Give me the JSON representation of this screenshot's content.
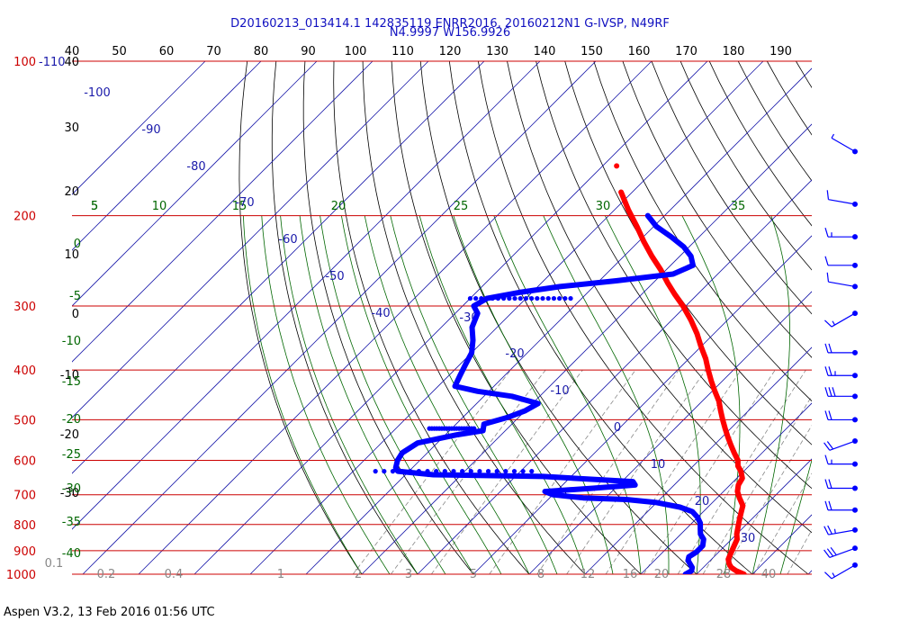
{
  "header": {
    "line1": "D20160213_013414.1 142835119 ENRR2016, 20160212N1 G-IVSP, N49RF",
    "line2": "N4.9997 W156.9926"
  },
  "footer": "Aspen V3.2, 13 Feb 2016  01:56 UTC",
  "colors": {
    "isobar": "#cc0000",
    "isotherm": "#1a1aaa",
    "dry_adiabat": "#000000",
    "moist_adiabat": "#006600",
    "mixing_ratio": "#888888",
    "temperature": "#ff0000",
    "dewpoint": "#0000ff",
    "wind_barb": "#0000ff"
  },
  "chart_data": {
    "type": "scatter",
    "subtype": "skew-t log-p sounding",
    "pressure_range_hPa": [
      100,
      1000
    ],
    "pressure_labels": [
      "100",
      "200",
      "300",
      "400",
      "500",
      "600",
      "700",
      "800",
      "900",
      "1000"
    ],
    "top_corner_label": "-110",
    "top_scale_labels": [
      "40",
      "50",
      "60",
      "70",
      "80",
      "90",
      "100",
      "110",
      "120",
      "130",
      "140",
      "150",
      "160",
      "170",
      "180",
      "190"
    ],
    "left_black_labels": [
      "40",
      "30",
      "20",
      "10",
      "0",
      "-10",
      "-20",
      "-30"
    ],
    "left_green_labels": [
      "5",
      "0",
      "-5",
      "-10",
      "-15",
      "-20",
      "-25",
      "-30",
      "-35",
      "-40"
    ],
    "top_green_labels": [
      "5",
      "10",
      "15",
      "20",
      "25",
      "30",
      "35"
    ],
    "isotherm_labels": [
      "-100",
      "-90",
      "-80",
      "-70",
      "-60",
      "-50",
      "-40",
      "-30",
      "-20",
      "-10",
      "0",
      "10",
      "20",
      "30"
    ],
    "bottom_labels": [
      "0.1",
      "0.2",
      "0.4",
      "1",
      "2",
      "3",
      "5",
      "8",
      "12",
      "16",
      "20",
      "28",
      "40"
    ],
    "temperature_profile": [
      {
        "p": 1000,
        "t": 28.5
      },
      {
        "p": 985,
        "t": 26.5
      },
      {
        "p": 970,
        "t": 25.0
      },
      {
        "p": 955,
        "t": 24.0
      },
      {
        "p": 935,
        "t": 23.0
      },
      {
        "p": 915,
        "t": 22.5
      },
      {
        "p": 895,
        "t": 22.0
      },
      {
        "p": 875,
        "t": 21.5
      },
      {
        "p": 855,
        "t": 21.0
      },
      {
        "p": 835,
        "t": 20.0
      },
      {
        "p": 810,
        "t": 19.0
      },
      {
        "p": 785,
        "t": 18.0
      },
      {
        "p": 760,
        "t": 17.0
      },
      {
        "p": 735,
        "t": 16.0
      },
      {
        "p": 710,
        "t": 14.0
      },
      {
        "p": 690,
        "t": 12.5
      },
      {
        "p": 670,
        "t": 11.5
      },
      {
        "p": 650,
        "t": 11.0
      },
      {
        "p": 630,
        "t": 9.5
      },
      {
        "p": 615,
        "t": 8.0
      },
      {
        "p": 600,
        "t": 7.0
      },
      {
        "p": 580,
        "t": 5.0
      },
      {
        "p": 560,
        "t": 3.0
      },
      {
        "p": 540,
        "t": 1.0
      },
      {
        "p": 520,
        "t": -1.0
      },
      {
        "p": 500,
        "t": -3.0
      },
      {
        "p": 480,
        "t": -5.0
      },
      {
        "p": 460,
        "t": -7.0
      },
      {
        "p": 440,
        "t": -9.5
      },
      {
        "p": 420,
        "t": -12.0
      },
      {
        "p": 400,
        "t": -14.5
      },
      {
        "p": 380,
        "t": -17.0
      },
      {
        "p": 360,
        "t": -20.0
      },
      {
        "p": 340,
        "t": -23.0
      },
      {
        "p": 320,
        "t": -26.5
      },
      {
        "p": 300,
        "t": -30.5
      },
      {
        "p": 285,
        "t": -34.0
      },
      {
        "p": 270,
        "t": -37.5
      },
      {
        "p": 255,
        "t": -41.0
      },
      {
        "p": 240,
        "t": -45.0
      },
      {
        "p": 225,
        "t": -49.0
      },
      {
        "p": 210,
        "t": -53.0
      },
      {
        "p": 195,
        "t": -57.5
      },
      {
        "p": 180,
        "t": -62.0
      }
    ],
    "temperature_isolated_point": {
      "p": 160,
      "t": -67.5
    },
    "dewpoint_profile": [
      {
        "p": 1000,
        "td": 18.0
      },
      {
        "p": 985,
        "td": 18.5
      },
      {
        "p": 970,
        "td": 18.0
      },
      {
        "p": 955,
        "td": 17.0
      },
      {
        "p": 940,
        "td": 16.0
      },
      {
        "p": 925,
        "td": 15.5
      },
      {
        "p": 905,
        "td": 16.0
      },
      {
        "p": 880,
        "td": 16.0
      },
      {
        "p": 855,
        "td": 15.0
      },
      {
        "p": 835,
        "td": 13.5
      },
      {
        "p": 815,
        "td": 12.5
      },
      {
        "p": 795,
        "td": 11.5
      },
      {
        "p": 775,
        "td": 10.0
      },
      {
        "p": 755,
        "td": 8.0
      },
      {
        "p": 740,
        "td": 5.0
      },
      {
        "p": 725,
        "td": 0.0
      },
      {
        "p": 715,
        "td": -6.0
      },
      {
        "p": 710,
        "td": -14.0
      },
      {
        "p": 700,
        "td": -20.0
      },
      {
        "p": 690,
        "td": -22.0
      },
      {
        "p": 680,
        "td": -14.0
      },
      {
        "p": 670,
        "td": -7.0
      },
      {
        "p": 660,
        "td": -8.0
      },
      {
        "p": 645,
        "td": -25.0
      },
      {
        "p": 640,
        "td": -45.0
      },
      {
        "p": 630,
        "td": -52.0
      },
      {
        "p": 620,
        "td": -53.0
      },
      {
        "p": 600,
        "td": -54.0
      },
      {
        "p": 580,
        "td": -54.5
      },
      {
        "p": 555,
        "td": -53.5
      },
      {
        "p": 535,
        "td": -48.0
      },
      {
        "p": 525,
        "td": -44.0
      },
      {
        "p": 510,
        "td": -45.0
      },
      {
        "p": 495,
        "td": -42.0
      },
      {
        "p": 480,
        "td": -40.0
      },
      {
        "p": 465,
        "td": -39.0
      },
      {
        "p": 450,
        "td": -45.0
      },
      {
        "p": 440,
        "td": -52.0
      },
      {
        "p": 430,
        "td": -57.0
      },
      {
        "p": 410,
        "td": -58.0
      },
      {
        "p": 390,
        "td": -59.0
      },
      {
        "p": 370,
        "td": -60.0
      },
      {
        "p": 350,
        "td": -62.0
      },
      {
        "p": 330,
        "td": -64.5
      },
      {
        "p": 310,
        "td": -66.0
      },
      {
        "p": 300,
        "td": -68.0
      },
      {
        "p": 290,
        "td": -67.0
      },
      {
        "p": 282,
        "td": -62.0
      },
      {
        "p": 275,
        "td": -56.0
      },
      {
        "p": 268,
        "td": -47.0
      },
      {
        "p": 260,
        "td": -38.0
      },
      {
        "p": 250,
        "td": -36.0
      },
      {
        "p": 240,
        "td": -38.0
      },
      {
        "p": 230,
        "td": -41.0
      },
      {
        "p": 220,
        "td": -45.0
      },
      {
        "p": 210,
        "td": -49.5
      },
      {
        "p": 200,
        "td": -53.0
      }
    ],
    "dewpoint_dotted_tracks": [
      {
        "p": 290,
        "td_from": -52,
        "td_to": -70
      },
      {
        "p": 630,
        "td_from": -56,
        "td_to": -28
      },
      {
        "p": 520,
        "td_from": -46,
        "td_to": -54
      }
    ],
    "wind_barbs": [
      {
        "p": 150,
        "spd": 5,
        "dir": 300
      },
      {
        "p": 190,
        "spd": 10,
        "dir": 280
      },
      {
        "p": 220,
        "spd": 15,
        "dir": 270
      },
      {
        "p": 250,
        "spd": 10,
        "dir": 270
      },
      {
        "p": 275,
        "spd": 10,
        "dir": 280
      },
      {
        "p": 310,
        "spd": 15,
        "dir": 240
      },
      {
        "p": 370,
        "spd": 20,
        "dir": 270
      },
      {
        "p": 410,
        "spd": 25,
        "dir": 270
      },
      {
        "p": 450,
        "spd": 30,
        "dir": 270
      },
      {
        "p": 500,
        "spd": 20,
        "dir": 270
      },
      {
        "p": 550,
        "spd": 20,
        "dir": 250
      },
      {
        "p": 610,
        "spd": 15,
        "dir": 270
      },
      {
        "p": 680,
        "spd": 20,
        "dir": 270
      },
      {
        "p": 750,
        "spd": 20,
        "dir": 270
      },
      {
        "p": 820,
        "spd": 25,
        "dir": 260
      },
      {
        "p": 890,
        "spd": 30,
        "dir": 250
      },
      {
        "p": 960,
        "spd": 15,
        "dir": 240
      }
    ]
  }
}
